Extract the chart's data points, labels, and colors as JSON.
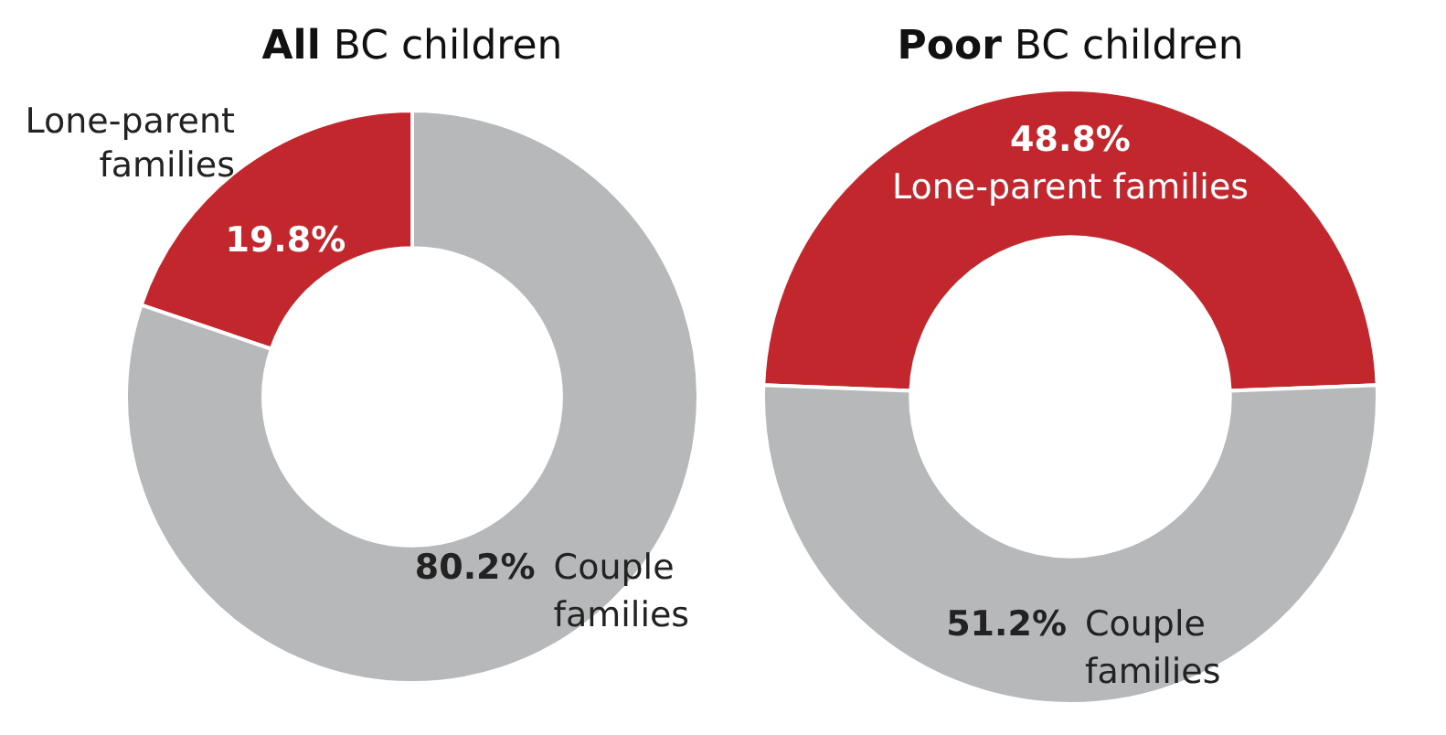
{
  "chart_data": [
    {
      "type": "donut",
      "title": "All BC children",
      "categories": [
        "Lone-parent families",
        "Couple families"
      ],
      "values": [
        19.8,
        80.2
      ],
      "colors": [
        "#c1272d",
        "#b7b8ba"
      ],
      "value_labels": [
        "19.8%",
        "80.2%"
      ]
    },
    {
      "type": "donut",
      "title": "Poor BC children",
      "categories": [
        "Lone-parent families",
        "Couple families"
      ],
      "values": [
        48.8,
        51.2
      ],
      "colors": [
        "#c1272d",
        "#b7b8ba"
      ],
      "value_labels": [
        "48.8%",
        "51.2%"
      ]
    }
  ]
}
